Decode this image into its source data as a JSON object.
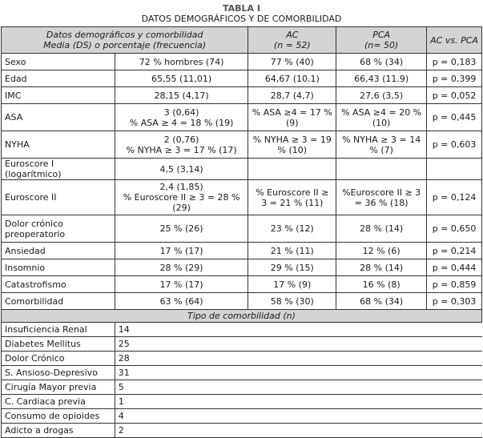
{
  "caption": {
    "label": "TABLA I",
    "title": "DATOS DEMOGRÁFICOS Y DE COMORBILIDAD"
  },
  "header": {
    "col1_line1": "Datos demográficos y comorbilidad",
    "col1_line2": "Media (DS) o porcentaje (frecuencia)",
    "ac_line1": "AC",
    "ac_line2": "(n = 52)",
    "pca_line1": "PCA",
    "pca_line2": "(n= 50)",
    "pval": "AC vs. PCA"
  },
  "rows": [
    {
      "label": "Sexo",
      "total": "72 % hombres (74)",
      "ac": "77 % (40)",
      "pca": "68 % (34)",
      "p": "p = 0,183"
    },
    {
      "label": "Edad",
      "total": "65,55 (11,01)",
      "ac": "64,67 (10.1)",
      "pca": "66,43 (11.9)",
      "p": "p = 0,399"
    },
    {
      "label": "IMC",
      "total": "28,15 (4,17)",
      "ac": "28,7 (4,7)",
      "pca": "27,6 (3,5)",
      "p": "p = 0,052"
    },
    {
      "label": "ASA",
      "total": "3 (0,64)",
      "total2": "% ASA ≥ 4 = 18 % (19)",
      "ac": "% ASA ≥4 = 17 % (9)",
      "pca": "% ASA ≥4 = 20 % (10)",
      "p": "p = 0,445"
    },
    {
      "label": "NYHA",
      "total": "2 (0,76)",
      "total2": "% NYHA ≥ 3 = 17 % (17)",
      "ac": "% NYHA ≥ 3 = 19 % (10)",
      "pca": "% NYHA ≥ 3 = 14 % (7)",
      "p": "p = 0,603"
    },
    {
      "label": "Euroscore I (logarítmico)",
      "total": "4,5 (3,14)",
      "ac": "",
      "pca": "",
      "p": ""
    },
    {
      "label": "Euroscore II",
      "total": "2,4 (1,85)",
      "total2": "% Euroscore II ≥ 3 = 28 % (29)",
      "ac": "% Euroscore II ≥ 3 = 21 % (11)",
      "pca": "%Euroscore II ≥ 3 = 36 % (18)",
      "p": "p = 0,124"
    },
    {
      "label": "Dolor crónico preoperatorio",
      "total": "25 % (26)",
      "ac": "23 % (12)",
      "pca": "28 % (14)",
      "p": "p = 0,650"
    },
    {
      "label": "Ansiedad",
      "total": "17 % (17)",
      "ac": "21 % (11)",
      "pca": "12 % (6)",
      "p": "p = 0,214"
    },
    {
      "label": "Insomnio",
      "total": "28 % (29)",
      "ac": "29 % (15)",
      "pca": "28 % (14)",
      "p": "p = 0,444"
    },
    {
      "label": "Catastrofismo",
      "total": "17 % (17)",
      "ac": "17 % (9)",
      "pca": "16 % (8)",
      "p": "p = 0,859"
    },
    {
      "label": "Comorbilidad",
      "total": "63 % (64)",
      "ac": "58 % (30)",
      "pca": "68 % (34)",
      "p": "p = 0,303"
    }
  ],
  "comorbidity_header": "Tipo de comorbilidad (n)",
  "comorbidities": [
    {
      "label": "Insuficiencia Renal",
      "n": "14"
    },
    {
      "label": "Diabetes Mellitus",
      "n": "25"
    },
    {
      "label": "Dolor Crónico",
      "n": "28"
    },
    {
      "label": "S. Ansioso-Depresivo",
      "n": "31"
    },
    {
      "label": "Cirugía Mayor previa",
      "n": "5"
    },
    {
      "label": "C. Cardiaca previa",
      "n": "1"
    },
    {
      "label": "Consumo de opioides",
      "n": "4"
    },
    {
      "label": "Adicto a drogas",
      "n": "2"
    }
  ]
}
